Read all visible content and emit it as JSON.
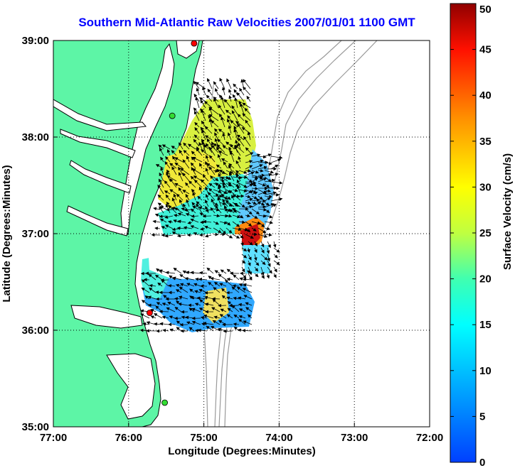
{
  "chart_data": {
    "type": "map-vector-field",
    "title": "Southern Mid-Atlantic Raw Velocities 2007/01/01 1100 GMT",
    "xlabel": "Longitude (Degrees:Minutes)",
    "ylabel": "Latitude (Degrees:Minutes)",
    "xlim": [
      -77,
      -72
    ],
    "ylim": [
      35,
      39
    ],
    "x_ticks": [
      "77:00",
      "76:00",
      "75:00",
      "74:00",
      "73:00",
      "72:00"
    ],
    "y_ticks": [
      "39:00",
      "38:00",
      "37:00",
      "36:00",
      "35:00"
    ],
    "grid": true,
    "colorbar": {
      "label": "Surface Velocity (cm/s)",
      "range": [
        0,
        50
      ],
      "ticks": [
        "0",
        "5",
        "10",
        "15",
        "20",
        "25",
        "30",
        "35",
        "40",
        "45",
        "50"
      ],
      "colormap": "jet"
    },
    "stations": [
      {
        "lon": -75.13,
        "lat": 38.97,
        "color": "#ff0000"
      },
      {
        "lon": -75.42,
        "lat": 38.22,
        "color": "#33dd33"
      },
      {
        "lon": -75.72,
        "lat": 36.18,
        "color": "#ff0000"
      },
      {
        "lon": -75.52,
        "lat": 35.25,
        "color": "#33dd33"
      }
    ]
  },
  "colors": {
    "land": "#5df5a6",
    "title": "#0000ff",
    "bathymetry": "#9a9a9a"
  }
}
